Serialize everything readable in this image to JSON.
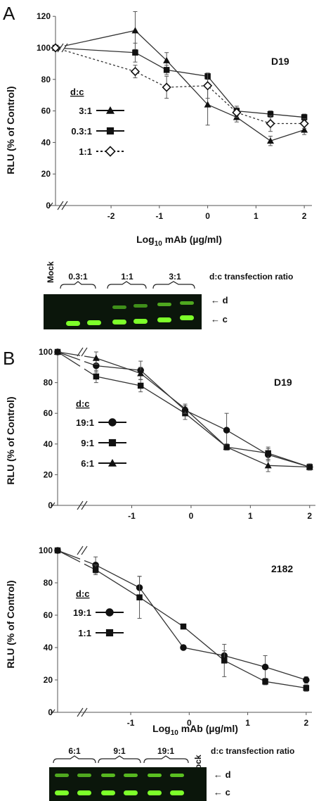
{
  "panel_labels": [
    "A",
    "B"
  ],
  "chart_data": [
    {
      "type": "line",
      "title": "D19",
      "xlabel": "Log10 mAb (µg/ml)",
      "ylabel": "RLU (% of Control)",
      "yticks": [
        "0",
        "20",
        "40",
        "60",
        "80",
        "100",
        "120"
      ],
      "xticks": [
        "-2",
        "-1",
        "0",
        "1",
        "2"
      ],
      "ylim": [
        0,
        125
      ],
      "xlim": [
        -3.15,
        2.1
      ],
      "axis_break": true,
      "legend_title": "d:c",
      "legend_position": "center-left",
      "series": [
        {
          "name": "3:1",
          "marker": "triangle",
          "line": "solid",
          "x": [
            -3.15,
            -1.5,
            -0.85,
            0,
            0.6,
            1.3,
            2
          ],
          "y": [
            100,
            111,
            92,
            64,
            56,
            41,
            48
          ],
          "err": [
            0,
            12,
            5,
            13,
            3,
            3,
            3
          ]
        },
        {
          "name": "0.3:1",
          "marker": "square",
          "line": "solid",
          "x": [
            -3.15,
            -1.5,
            -0.85,
            0,
            0.6,
            1.3,
            2
          ],
          "y": [
            100,
            97,
            86,
            82,
            60,
            58,
            56
          ],
          "err": [
            0,
            6,
            3,
            2,
            3,
            2,
            2
          ]
        },
        {
          "name": "1:1",
          "marker": "diamond-open",
          "line": "dashed",
          "x": [
            -3.15,
            -1.5,
            -0.85,
            0,
            0.6,
            1.3,
            2
          ],
          "y": [
            100,
            85,
            75,
            76,
            59,
            52,
            52
          ],
          "err": [
            0,
            4,
            7,
            8,
            3,
            5,
            3
          ]
        }
      ]
    },
    {
      "type": "line",
      "title": "D19",
      "xlabel": "",
      "ylabel": "RLU (% of Control)",
      "yticks": [
        "0",
        "20",
        "40",
        "60",
        "80",
        "100"
      ],
      "xticks": [
        "-1",
        "0",
        "1",
        "2"
      ],
      "ylim": [
        0,
        100
      ],
      "xlim": [
        -2.25,
        2.05
      ],
      "axis_break": true,
      "legend_title": "d:c",
      "legend_position": "center-left",
      "series": [
        {
          "name": "19:1",
          "marker": "circle",
          "line": "solid",
          "x": [
            -2.25,
            -1.6,
            -0.85,
            -0.1,
            0.6,
            1.3,
            2
          ],
          "y": [
            100,
            91,
            88,
            62,
            49,
            33,
            25
          ],
          "err": [
            0,
            4,
            6,
            3,
            11,
            4,
            2
          ]
        },
        {
          "name": "9:1",
          "marker": "square",
          "line": "solid",
          "x": [
            -2.25,
            -1.6,
            -0.85,
            -0.1,
            0.6,
            1.3,
            2
          ],
          "y": [
            100,
            84,
            78,
            60,
            38,
            34,
            25
          ],
          "err": [
            0,
            4,
            4,
            4,
            2,
            4,
            2
          ]
        },
        {
          "name": "6:1",
          "marker": "triangle",
          "line": "solid",
          "x": [
            -2.25,
            -1.6,
            -0.85,
            -0.1,
            0.6,
            1.3,
            2
          ],
          "y": [
            100,
            96,
            86,
            63,
            38,
            26,
            25
          ],
          "err": [
            0,
            4,
            4,
            3,
            2,
            4,
            2
          ]
        }
      ]
    },
    {
      "type": "line",
      "title": "2182",
      "xlabel": "Log10 mAb (µg/ml)",
      "ylabel": "RLU (% of Control)",
      "yticks": [
        "0",
        "20",
        "40",
        "60",
        "80",
        "100"
      ],
      "xticks": [
        "-1",
        "0",
        "1",
        "2"
      ],
      "ylim": [
        0,
        100
      ],
      "xlim": [
        -2.25,
        2.05
      ],
      "axis_break": true,
      "legend_title": "d:c",
      "legend_position": "center-left",
      "series": [
        {
          "name": "19:1",
          "marker": "circle",
          "line": "solid",
          "x": [
            -2.25,
            -1.6,
            -0.85,
            -0.1,
            0.6,
            1.3,
            2
          ],
          "y": [
            100,
            91,
            77,
            40,
            35,
            28,
            20
          ],
          "err": [
            0,
            5,
            7,
            0,
            3,
            7,
            2
          ]
        },
        {
          "name": "1:1",
          "marker": "square",
          "line": "solid",
          "x": [
            -2.25,
            -1.6,
            -0.85,
            -0.1,
            0.6,
            1.3,
            2
          ],
          "y": [
            100,
            88,
            71,
            53,
            32,
            19,
            15
          ],
          "err": [
            0,
            3,
            13,
            0,
            10,
            2,
            2
          ]
        }
      ]
    }
  ],
  "gels": [
    {
      "groups": [
        "0.3:1",
        "1:1",
        "3:1"
      ],
      "mock_label": "Mock",
      "caption": "d:c transfection ratio",
      "band_labels": [
        "d",
        "c"
      ]
    },
    {
      "groups": [
        "6:1",
        "9:1",
        "19:1"
      ],
      "mock_label": "Mock",
      "caption": "d:c transfection ratio",
      "band_labels": [
        "d",
        "c"
      ]
    }
  ],
  "colors": {
    "gel_background": "#0b160b",
    "band_bright": "#7dff2a",
    "band_dim": "#3f8f1a",
    "line": "#222222"
  }
}
